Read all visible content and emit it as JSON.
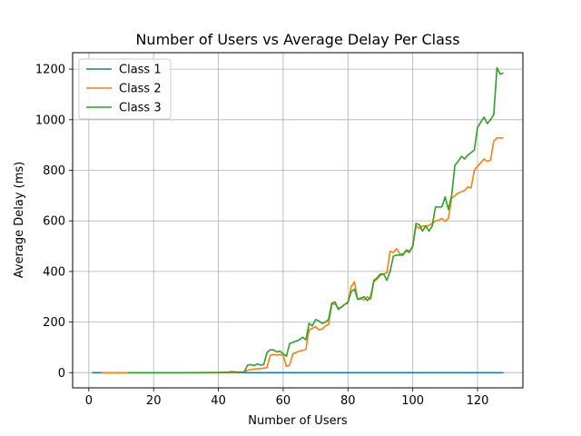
{
  "chart_data": {
    "type": "line",
    "title": "Number of Users vs Average Delay Per Class",
    "xlabel": "Number of Users",
    "ylabel": "Average Delay (ms)",
    "xlim": [
      -5,
      134
    ],
    "ylim": [
      -60,
      1265
    ],
    "grid": true,
    "legend_position": "top-left",
    "xticks": [
      0,
      20,
      40,
      60,
      80,
      100,
      120
    ],
    "xtick_labels": [
      "0",
      "20",
      "40",
      "60",
      "80",
      "100",
      "120"
    ],
    "yticks": [
      0,
      200,
      400,
      600,
      800,
      1000,
      1200
    ],
    "ytick_labels": [
      "0",
      "200",
      "400",
      "600",
      "800",
      "1000",
      "1200"
    ],
    "series": [
      {
        "name": "Class 1",
        "color": "#1f77b4",
        "x": [
          1,
          128
        ],
        "y": [
          0,
          0
        ]
      },
      {
        "name": "Class 2",
        "color": "#ff7f0e",
        "x": [
          4,
          12,
          20,
          30,
          40,
          44,
          46,
          48,
          49,
          50,
          51,
          52,
          53,
          54,
          55,
          56,
          57,
          58,
          59,
          60,
          61,
          62,
          63,
          64,
          65,
          66,
          67,
          68,
          69,
          70,
          71,
          72,
          73,
          74,
          75,
          76,
          77,
          78,
          79,
          80,
          81,
          82,
          83,
          84,
          85,
          86,
          87,
          88,
          89,
          90,
          91,
          92,
          93,
          94,
          95,
          96,
          97,
          98,
          99,
          100,
          101,
          102,
          103,
          104,
          105,
          106,
          107,
          108,
          109,
          110,
          111,
          112,
          113,
          114,
          115,
          116,
          117,
          118,
          119,
          120,
          121,
          122,
          123,
          124,
          125,
          126,
          127,
          128
        ],
        "y": [
          0,
          0,
          0,
          0,
          0,
          1,
          1,
          2,
          10,
          12,
          14,
          15,
          16,
          18,
          20,
          68,
          72,
          70,
          72,
          68,
          25,
          30,
          75,
          80,
          85,
          88,
          92,
          170,
          175,
          182,
          170,
          172,
          185,
          190,
          270,
          272,
          255,
          258,
          270,
          275,
          340,
          360,
          290,
          292,
          288,
          300,
          290,
          360,
          370,
          385,
          390,
          395,
          480,
          475,
          490,
          470,
          470,
          480,
          475,
          500,
          580,
          570,
          580,
          580,
          582,
          590,
          600,
          602,
          610,
          598,
          610,
          690,
          700,
          710,
          715,
          720,
          735,
          730,
          800,
          815,
          830,
          845,
          835,
          840,
          915,
          928,
          928,
          928
        ]
      },
      {
        "name": "Class 3",
        "color": "#2ca02c",
        "x": [
          12,
          20,
          30,
          40,
          43,
          44,
          46,
          48,
          49,
          50,
          51,
          52,
          53,
          54,
          55,
          56,
          57,
          58,
          59,
          60,
          61,
          62,
          63,
          64,
          65,
          66,
          67,
          68,
          69,
          70,
          71,
          72,
          73,
          74,
          75,
          76,
          77,
          78,
          79,
          80,
          81,
          82,
          83,
          84,
          85,
          86,
          87,
          88,
          89,
          90,
          91,
          92,
          93,
          94,
          95,
          96,
          97,
          98,
          99,
          100,
          101,
          102,
          103,
          104,
          105,
          106,
          107,
          108,
          109,
          110,
          111,
          112,
          113,
          114,
          115,
          116,
          117,
          118,
          119,
          120,
          121,
          122,
          123,
          124,
          125,
          126,
          127,
          128
        ],
        "y": [
          0,
          0,
          0,
          1,
          2,
          4,
          2,
          3,
          30,
          32,
          28,
          35,
          30,
          32,
          80,
          90,
          90,
          82,
          85,
          75,
          65,
          115,
          120,
          125,
          130,
          140,
          130,
          195,
          185,
          210,
          205,
          195,
          200,
          210,
          275,
          280,
          250,
          260,
          270,
          280,
          320,
          330,
          290,
          295,
          300,
          285,
          300,
          365,
          375,
          390,
          390,
          365,
          400,
          460,
          465,
          465,
          465,
          485,
          480,
          500,
          590,
          585,
          560,
          580,
          560,
          580,
          655,
          655,
          655,
          695,
          645,
          700,
          820,
          835,
          855,
          845,
          860,
          870,
          880,
          970,
          990,
          1010,
          985,
          1000,
          1020,
          1205,
          1180,
          1185
        ]
      }
    ]
  }
}
